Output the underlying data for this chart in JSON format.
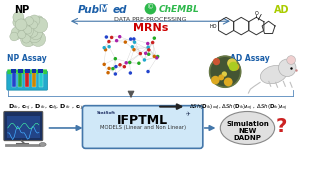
{
  "bg_color": "#ffffff",
  "np_label": "NP",
  "ad_label": "AD",
  "np_assay_label": "NP Assay",
  "ad_assay_label": "AD Assay",
  "pubmed_blue": "#1a5ea8",
  "pubmed_red": "#cc0000",
  "chembl_green": "#2db84b",
  "mrns_label": "MRNs",
  "mrns_color": "#cc0000",
  "data_pre_label": "DATA PRE-PROCESSING",
  "ifptml_label": "IFPTML",
  "ifptml_sub": "MODELS (Linear and Non Linear)",
  "sim_label": "Simulation\nNEW\nDADNP",
  "box_fill": "#d0e8f8",
  "box_edge": "#4477aa",
  "oval_fill": "#e0e0e0",
  "oval_edge": "#888888",
  "ad_label_color": "#aacc00",
  "np_label_color": "#000000",
  "arrow_color": "#4477aa",
  "formula_color": "#000000",
  "qmark_color": "#cc2222",
  "bracket_line_color": "#5588bb",
  "network_colors": [
    "#cc2222",
    "#2244cc",
    "#22aa22",
    "#cc6600",
    "#aa22aa",
    "#22aacc"
  ],
  "np_sphere_color": "#c8d8c0",
  "np_sphere_edge": "#a0b098"
}
